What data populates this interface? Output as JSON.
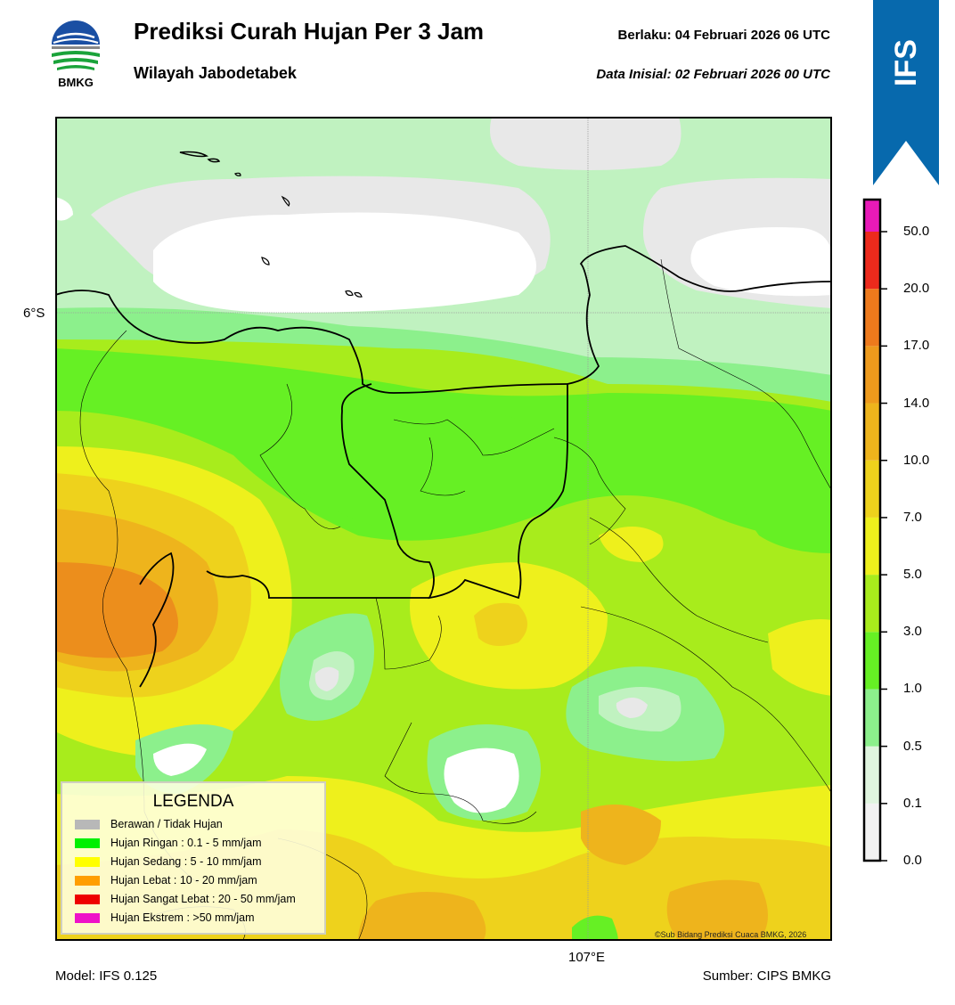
{
  "header": {
    "title": "Prediksi Curah Hujan Per 3 Jam",
    "subtitle": "Wilayah Jabodetabek",
    "valid_label": "Berlaku:  04 Februari 2026 06 UTC",
    "init_label": "Data Inisial:  02 Februari 2026 00 UTC",
    "logo_text": "BMKG",
    "logo_icon": "bmkg-logo-icon"
  },
  "ribbon": {
    "text": "IFS",
    "color": "#0769ad"
  },
  "axes": {
    "lat_label": "6°S",
    "lon_label": "107°E"
  },
  "footer": {
    "model": "Model: IFS 0.125",
    "source": "Sumber: CIPS BMKG",
    "copyright": "©Sub Bidang Prediksi Cuaca BMKG, 2026"
  },
  "legend": {
    "title": "LEGENDA",
    "items": [
      {
        "label": "Berawan / Tidak Hujan",
        "color": "#b8b8b8"
      },
      {
        "label": "Hujan Ringan : 0.1 - 5 mm/jam",
        "color": "#00f000"
      },
      {
        "label": "Hujan Sedang : 5 - 10 mm/jam",
        "color": "#ffff00"
      },
      {
        "label": "Hujan Lebat : 10 - 20 mm/jam",
        "color": "#ff9e00"
      },
      {
        "label": "Hujan Sangat Lebat : 20 - 50 mm/jam",
        "color": "#ee0000"
      },
      {
        "label": "Hujan Ekstrem : >50 mm/jam",
        "color": "#ee12c8"
      }
    ]
  },
  "colorbar": {
    "ticks": [
      "0.0",
      "0.1",
      "0.5",
      "1.0",
      "3.0",
      "5.0",
      "7.0",
      "10.0",
      "14.0",
      "17.0",
      "20.0",
      "50.0"
    ],
    "colors": [
      "#f2f2f2",
      "#e0f5df",
      "#8cf08c",
      "#66f024",
      "#a8ec1c",
      "#eef01c",
      "#eed21c",
      "#eeb41c",
      "#ee9a1c",
      "#ee7a1c",
      "#ec2a1c",
      "#e81ab8"
    ]
  },
  "map_colors": {
    "none": "#e8e8e8",
    "white": "#ffffff",
    "c01": "#c0f2c0",
    "c05": "#8cf08c",
    "c1": "#66f024",
    "c3": "#a8ec1c",
    "c5": "#eef01c",
    "c7": "#eed21c",
    "c10": "#eeb41c",
    "c14": "#ec8e1c"
  }
}
